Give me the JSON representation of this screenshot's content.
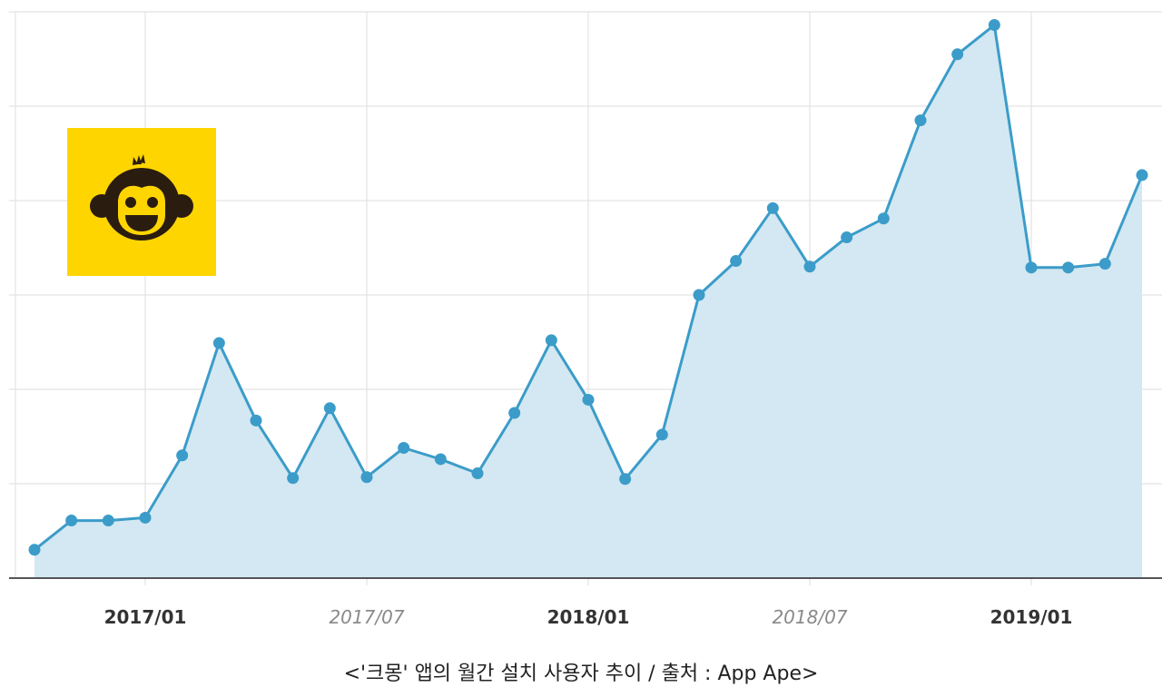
{
  "chart_data": {
    "type": "area",
    "title": "",
    "xlabel": "",
    "ylabel": "",
    "ylim": [
      0,
      6
    ],
    "grid": true,
    "legend": "none",
    "x_ticks": [
      {
        "label": "2017/01",
        "index": 3,
        "style": "major"
      },
      {
        "label": "2017/07",
        "index": 9,
        "style": "minor"
      },
      {
        "label": "2018/01",
        "index": 15,
        "style": "major"
      },
      {
        "label": "2018/07",
        "index": 21,
        "style": "minor"
      },
      {
        "label": "2019/01",
        "index": 27,
        "style": "major"
      }
    ],
    "x": [
      "2016/10",
      "2016/11",
      "2016/12",
      "2017/01",
      "2017/02",
      "2017/03",
      "2017/04",
      "2017/05",
      "2017/06",
      "2017/07",
      "2017/08",
      "2017/09",
      "2017/10",
      "2017/11",
      "2017/12",
      "2018/01",
      "2018/02",
      "2018/03",
      "2018/04",
      "2018/05",
      "2018/06",
      "2018/07",
      "2018/08",
      "2018/09",
      "2018/10",
      "2018/11",
      "2018/12",
      "2019/01",
      "2019/02",
      "2019/03",
      "2019/04"
    ],
    "series": [
      {
        "values": [
          0.3,
          0.61,
          0.61,
          0.64,
          1.3,
          2.49,
          1.67,
          1.06,
          1.8,
          1.07,
          1.38,
          1.26,
          1.11,
          1.75,
          2.52,
          1.89,
          1.05,
          1.52,
          3.0,
          3.36,
          3.92,
          3.3,
          3.61,
          3.81,
          4.85,
          5.55,
          5.86,
          3.29,
          3.29,
          3.33,
          4.27
        ],
        "color": "#3b9cc9",
        "fill": "#d3e8f2"
      }
    ]
  },
  "caption": "<'크몽' 앱의 월간 설치 사용자 추이 / 출처 : App Ape>",
  "colors": {
    "line": "#3b9cc9",
    "area": "#d3e8f2",
    "grid": "#dddddd",
    "logo_bg": "#ffd500",
    "logo_face": "#2b1c10"
  },
  "logo_icon": "monkey-face-icon"
}
